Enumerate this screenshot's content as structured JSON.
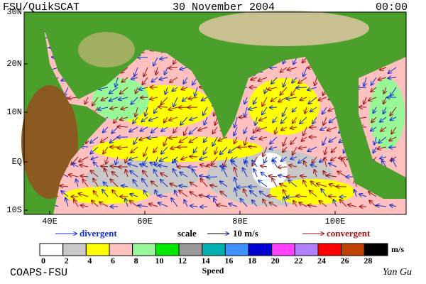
{
  "header": {
    "left": "FSU/QuikSCAT",
    "center": "30 November 2004",
    "right": "00:00"
  },
  "map": {
    "lat_labels": [
      "30N",
      "20N",
      "10N",
      "EQ",
      "10S"
    ],
    "lon_labels": [
      "40E",
      "60E",
      "80E",
      "100E"
    ]
  },
  "legend": {
    "divergent": "divergent",
    "scale": "scale",
    "scale_value": "10 m/s",
    "convergent": "convergent"
  },
  "colorbar": {
    "labels": [
      0,
      2,
      4,
      6,
      8,
      10,
      12,
      14,
      16,
      18,
      20,
      22,
      24,
      26,
      28
    ],
    "unit": "m/s",
    "title": "Speed",
    "colors": [
      "#ffffff",
      "#c8c8c8",
      "#ffff00",
      "#ffc0c0",
      "#98f898",
      "#00e800",
      "#989898",
      "#00b0b0",
      "#4090ff",
      "#0000d0",
      "#ff40ff",
      "#b080ff",
      "#ff0000",
      "#c04000",
      "#000000"
    ]
  },
  "footer": {
    "left": "COAPS-FSU",
    "right": "Yan Gu"
  }
}
